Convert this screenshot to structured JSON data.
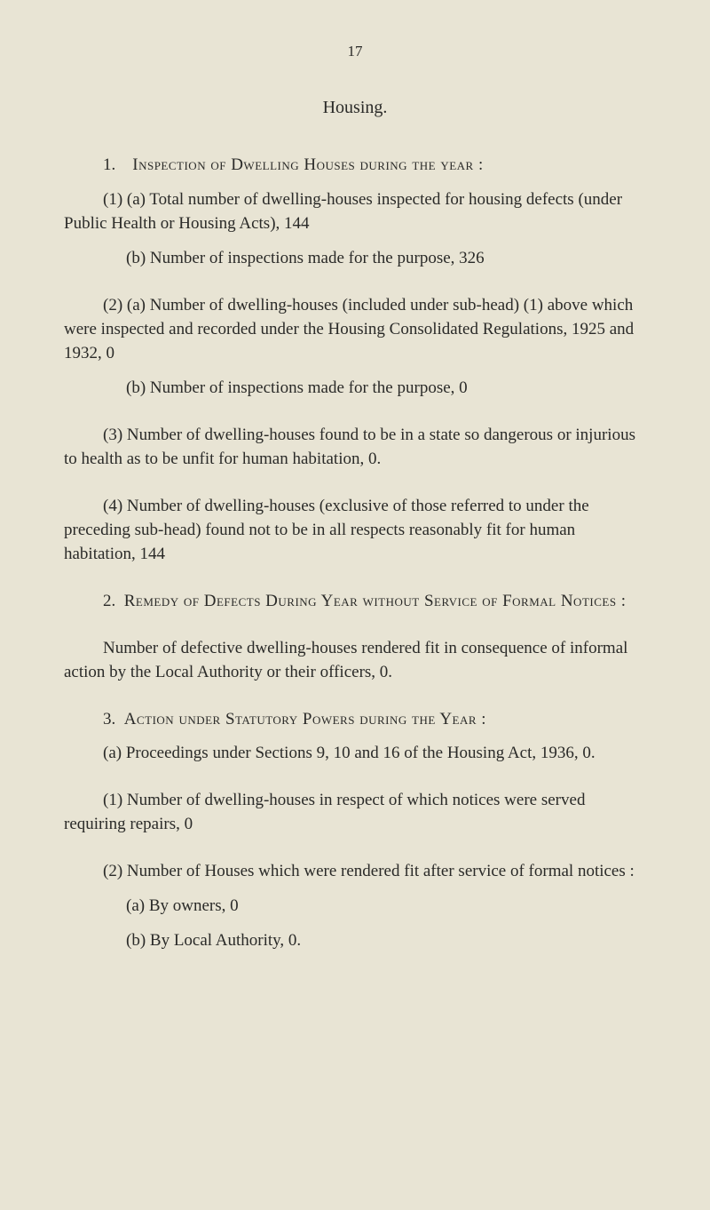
{
  "page_number": "17",
  "section_title": "Housing.",
  "paragraphs": {
    "p1_heading": "Inspection of Dwelling Houses during the year :",
    "p1_num": "1.",
    "p1a": "(1) (a) Total number of dwelling-houses inspected for housing defects (under Public Health or Housing Acts), 144",
    "p1b": "(b) Number of inspections made for the purpose, 326",
    "p2a": "(2) (a) Number of dwelling-houses (included under sub-head) (1) above which were inspected and recorded under the Housing Consolidated Regulations, 1925 and 1932, 0",
    "p2b": "(b) Number of inspections made for the purpose, 0",
    "p3": "(3) Number of dwelling-houses found to be in a state so dangerous or injurious to health as to be unfit for human habitation, 0.",
    "p4": "(4) Number of dwelling-houses (exclusive of those referred to under the preceding sub-head) found not to be in all respects reasonably fit for human habitation, 144",
    "p5_num": "2.",
    "p5_heading": "Remedy of Defects During Year without Service of Formal Notices :",
    "p5_body": "Number of defective dwelling-houses rendered fit in consequence of informal action by the Local Authority or their officers, 0.",
    "p6_num": "3.",
    "p6_heading": "Action under Statutory Powers during the Year :",
    "p6a": "(a) Proceedings under Sections 9, 10 and 16 of the Housing Act, 1936, 0.",
    "p7": "(1) Number of dwelling-houses in respect of which notices were served requiring repairs, 0",
    "p8": "(2) Number of Houses which were rendered fit after service of formal notices :",
    "p8a": "(a) By owners, 0",
    "p8b": "(b) By Local Authority, 0."
  }
}
